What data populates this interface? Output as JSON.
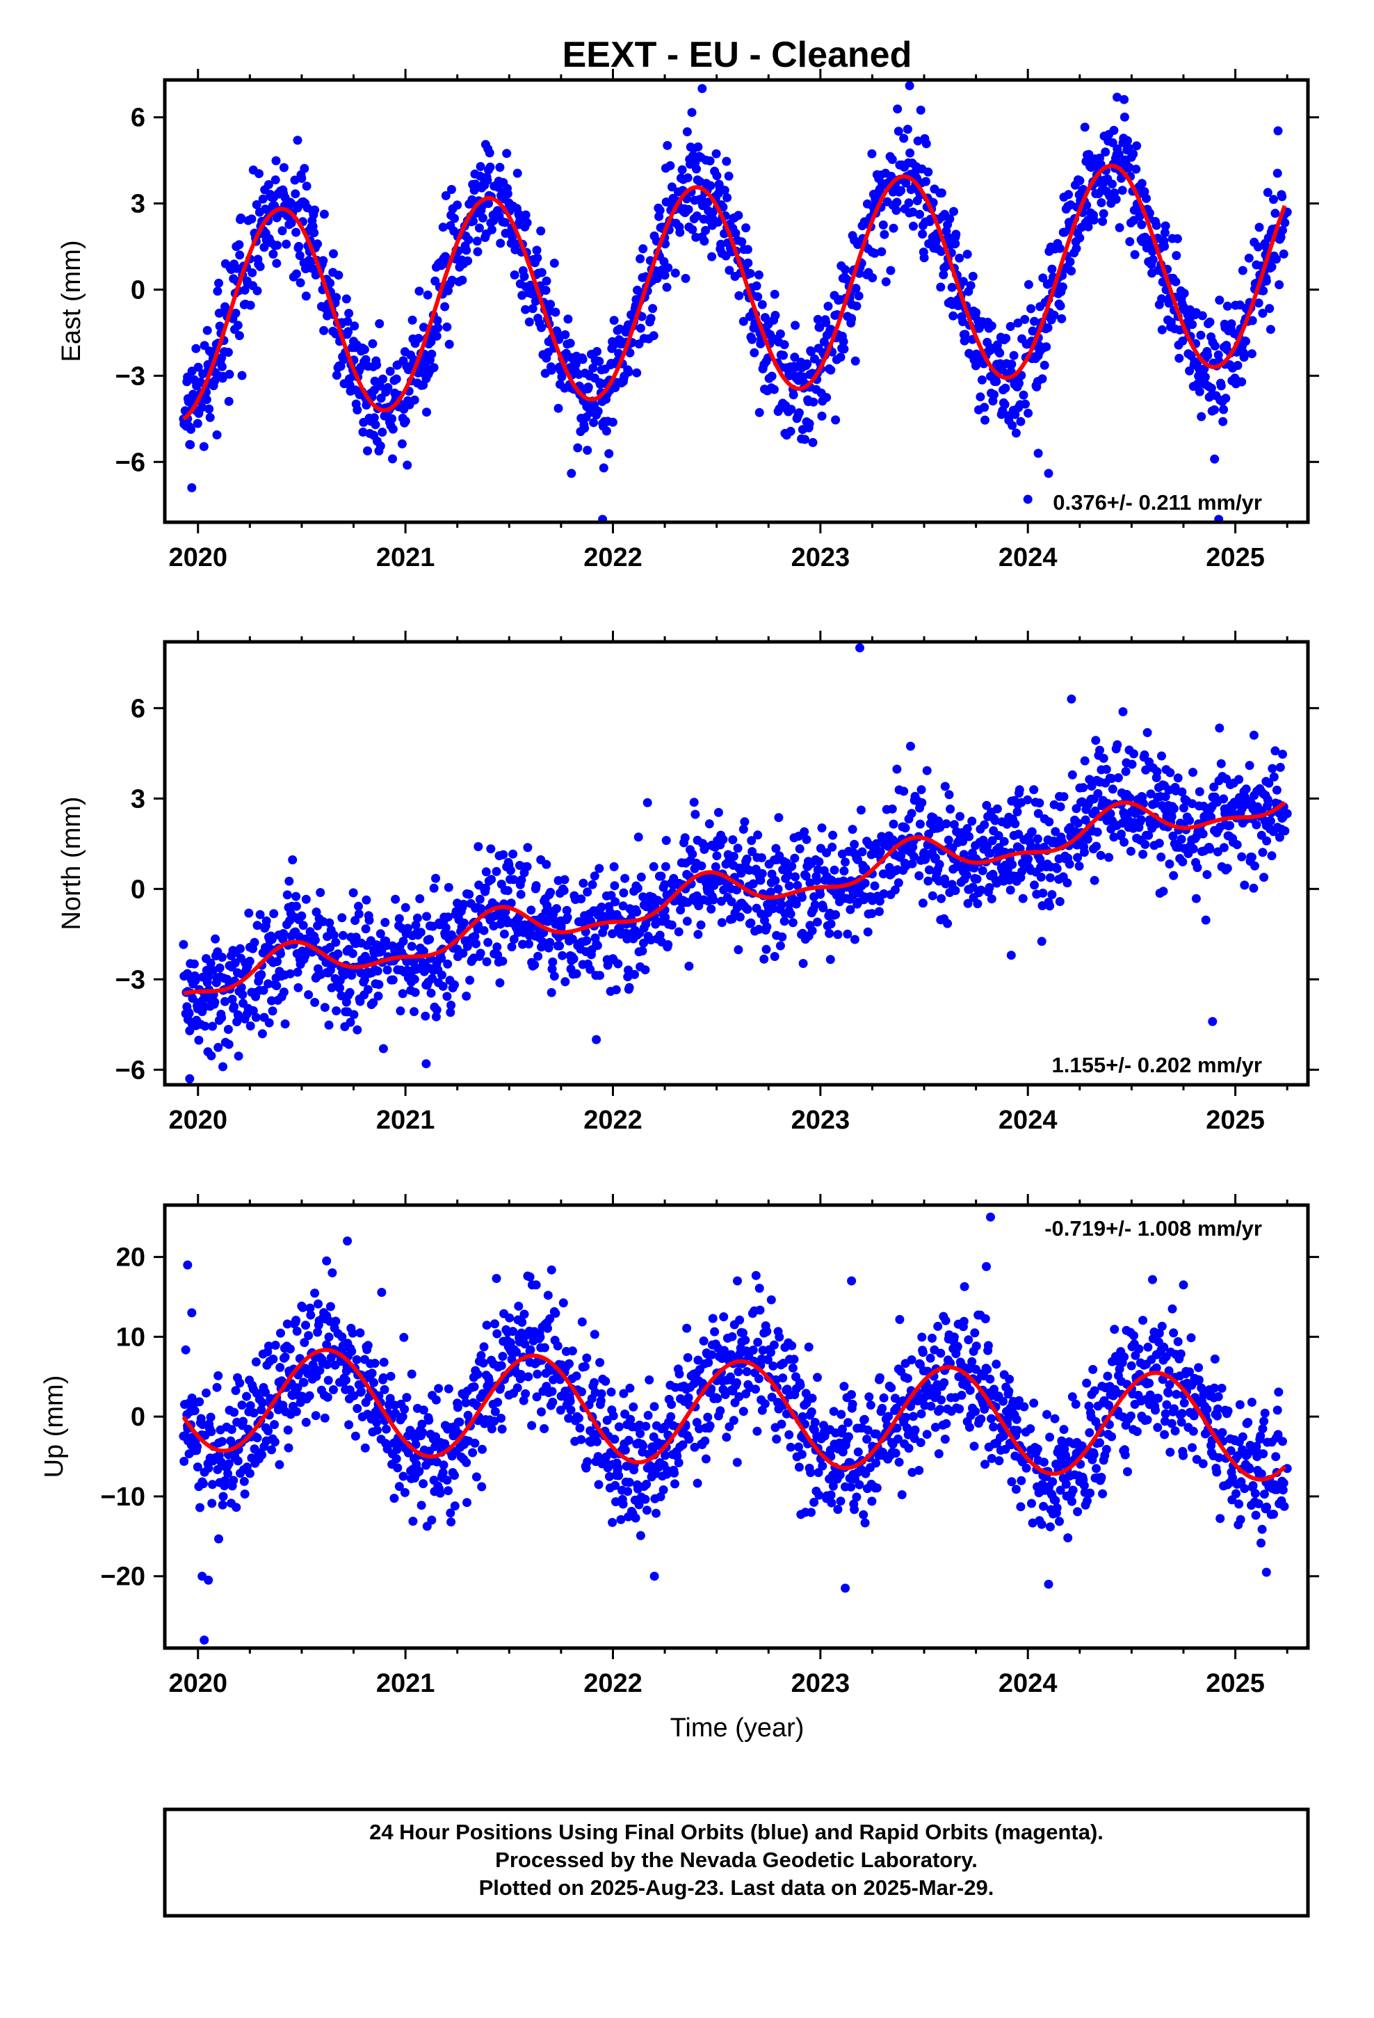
{
  "title": "EEXT  - EU - Cleaned",
  "xlabel": "Time (year)",
  "footer": [
    "24 Hour Positions Using Final Orbits (blue) and Rapid Orbits (magenta).",
    "Processed by the Nevada Geodetic Laboratory.",
    "Plotted on 2025-Aug-23. Last data on 2025-Mar-29."
  ],
  "colors": {
    "data": "#0000ff",
    "model": "#ff0000",
    "frame": "#000000"
  },
  "chart_data": [
    {
      "type": "scatter",
      "ylabel": "East (mm)",
      "rate_label": "0.376+/- 0.211 mm/yr",
      "xlim": [
        2019.84,
        2025.35
      ],
      "ylim": [
        -8.1,
        7.3
      ],
      "xticks": [
        2020,
        2021,
        2022,
        2023,
        2024,
        2025
      ],
      "yticks": [
        6,
        3,
        0,
        -3,
        -6
      ],
      "model": {
        "intercept": 0.0,
        "slope": 0.376,
        "epoch": 2022.5,
        "amplitude": 3.6,
        "phase_year": 0.4,
        "semiannual": 0.0
      },
      "noise_sd": 1.0,
      "series": [
        {
          "name": "daily positions",
          "points": [
            [
              2019.95,
              -4.5
            ],
            [
              2020.02,
              -4.1
            ],
            [
              2020.1,
              -3.0
            ],
            [
              2020.2,
              -1.6
            ],
            [
              2020.3,
              0.8
            ],
            [
              2020.38,
              2.5
            ],
            [
              2020.45,
              3.0
            ],
            [
              2020.55,
              2.4
            ],
            [
              2020.65,
              0.6
            ],
            [
              2020.75,
              -1.8
            ],
            [
              2020.85,
              -3.5
            ],
            [
              2020.93,
              -4.1
            ],
            [
              2021.0,
              -4.0
            ],
            [
              2021.1,
              -3.1
            ],
            [
              2021.2,
              -1.3
            ],
            [
              2021.3,
              1.0
            ],
            [
              2021.4,
              3.0
            ],
            [
              2021.48,
              3.4
            ],
            [
              2021.58,
              2.6
            ],
            [
              2021.68,
              0.3
            ],
            [
              2021.78,
              -1.9
            ],
            [
              2021.88,
              -3.4
            ],
            [
              2021.96,
              -3.6
            ],
            [
              2022.05,
              -3.2
            ],
            [
              2022.15,
              -1.7
            ],
            [
              2022.25,
              0.5
            ],
            [
              2022.35,
              2.7
            ],
            [
              2022.45,
              3.7
            ],
            [
              2022.55,
              3.2
            ],
            [
              2022.65,
              1.4
            ],
            [
              2022.75,
              -1.2
            ],
            [
              2022.85,
              -3.0
            ],
            [
              2022.95,
              -3.4
            ],
            [
              2023.05,
              -2.8
            ],
            [
              2023.15,
              -1.0
            ],
            [
              2023.25,
              1.3
            ],
            [
              2023.35,
              3.4
            ],
            [
              2023.45,
              4.0
            ],
            [
              2023.55,
              3.5
            ],
            [
              2023.65,
              1.6
            ],
            [
              2023.75,
              -0.8
            ],
            [
              2023.85,
              -2.6
            ],
            [
              2023.95,
              -3.0
            ],
            [
              2024.05,
              -2.3
            ],
            [
              2024.15,
              -0.5
            ],
            [
              2024.25,
              1.8
            ],
            [
              2024.35,
              3.8
            ],
            [
              2024.45,
              4.4
            ],
            [
              2024.55,
              3.7
            ],
            [
              2024.65,
              1.7
            ],
            [
              2024.75,
              -0.6
            ],
            [
              2024.85,
              -2.3
            ],
            [
              2024.95,
              -2.6
            ],
            [
              2025.05,
              -1.8
            ],
            [
              2025.15,
              0.3
            ],
            [
              2025.25,
              2.7
            ],
            [
              2020.48,
              5.2
            ],
            [
              2023.43,
              7.1
            ],
            [
              2022.43,
              7.0
            ],
            [
              2024.43,
              6.7
            ],
            [
              2024.1,
              -6.4
            ],
            [
              2024.05,
              -5.7
            ],
            [
              2024.0,
              -7.3
            ],
            [
              2021.95,
              -8.0
            ],
            [
              2021.8,
              -6.4
            ],
            [
              2019.97,
              -6.9
            ],
            [
              2024.9,
              -5.9
            ],
            [
              2024.92,
              -8.0
            ]
          ]
        }
      ]
    },
    {
      "type": "scatter",
      "ylabel": "North (mm)",
      "rate_label": "1.155+/- 0.202 mm/yr",
      "xlim": [
        2019.84,
        2025.35
      ],
      "ylim": [
        -6.5,
        8.2
      ],
      "xticks": [
        2020,
        2021,
        2022,
        2023,
        2024,
        2025
      ],
      "yticks": [
        6,
        3,
        0,
        -3,
        -6
      ],
      "model": {
        "intercept": -0.2,
        "slope": 1.155,
        "epoch": 2022.5,
        "amplitude": 0.55,
        "phase_year": 0.45,
        "semiannual": 0.25
      },
      "noise_sd": 1.0,
      "series": [
        {
          "name": "daily positions",
          "points": [
            [
              2019.95,
              -3.4
            ],
            [
              2020.05,
              -3.6
            ],
            [
              2020.15,
              -3.2
            ],
            [
              2020.25,
              -2.4
            ],
            [
              2020.35,
              -2.0
            ],
            [
              2020.45,
              -1.8
            ],
            [
              2020.55,
              -2.1
            ],
            [
              2020.65,
              -2.5
            ],
            [
              2020.75,
              -2.6
            ],
            [
              2020.85,
              -2.4
            ],
            [
              2020.95,
              -2.1
            ],
            [
              2021.05,
              -2.3
            ],
            [
              2021.15,
              -2.5
            ],
            [
              2021.25,
              -2.0
            ],
            [
              2021.35,
              -1.2
            ],
            [
              2021.45,
              -0.8
            ],
            [
              2021.55,
              -0.9
            ],
            [
              2021.65,
              -1.3
            ],
            [
              2021.75,
              -1.3
            ],
            [
              2021.85,
              -1.1
            ],
            [
              2021.95,
              -0.9
            ],
            [
              2022.05,
              -1.1
            ],
            [
              2022.15,
              -1.3
            ],
            [
              2022.25,
              -0.7
            ],
            [
              2022.35,
              0.0
            ],
            [
              2022.45,
              0.4
            ],
            [
              2022.55,
              0.3
            ],
            [
              2022.65,
              -0.1
            ],
            [
              2022.75,
              -0.2
            ],
            [
              2022.85,
              0.1
            ],
            [
              2022.95,
              0.2
            ],
            [
              2023.05,
              0.0
            ],
            [
              2023.15,
              0.0
            ],
            [
              2023.25,
              0.5
            ],
            [
              2023.35,
              1.2
            ],
            [
              2023.45,
              1.6
            ],
            [
              2023.55,
              1.4
            ],
            [
              2023.65,
              1.0
            ],
            [
              2023.75,
              1.0
            ],
            [
              2023.85,
              1.3
            ],
            [
              2023.95,
              1.4
            ],
            [
              2024.05,
              1.1
            ],
            [
              2024.15,
              1.0
            ],
            [
              2024.25,
              1.6
            ],
            [
              2024.35,
              2.4
            ],
            [
              2024.45,
              2.8
            ],
            [
              2024.55,
              2.6
            ],
            [
              2024.65,
              2.2
            ],
            [
              2024.75,
              2.1
            ],
            [
              2024.85,
              2.4
            ],
            [
              2024.95,
              2.5
            ],
            [
              2025.05,
              2.3
            ],
            [
              2025.15,
              2.1
            ],
            [
              2025.25,
              2.5
            ],
            [
              2023.19,
              8.0
            ],
            [
              2024.21,
              6.3
            ],
            [
              2025.09,
              5.1
            ],
            [
              2024.89,
              -4.4
            ],
            [
              2021.92,
              -5.0
            ],
            [
              2021.1,
              -5.8
            ],
            [
              2019.96,
              -6.3
            ],
            [
              2020.12,
              -5.9
            ],
            [
              2023.92,
              -2.2
            ]
          ]
        }
      ]
    },
    {
      "type": "scatter",
      "ylabel": "Up (mm)",
      "rate_label": "-0.719+/- 1.008 mm/yr",
      "xlim": [
        2019.84,
        2025.35
      ],
      "ylim": [
        -29.0,
        26.5
      ],
      "xticks": [
        2020,
        2021,
        2022,
        2023,
        2024,
        2025
      ],
      "yticks": [
        20,
        10,
        0,
        -10,
        -20
      ],
      "model": {
        "intercept": 0.5,
        "slope": -0.719,
        "epoch": 2022.5,
        "amplitude": 6.5,
        "phase_year": 0.62,
        "semiannual": 0.0
      },
      "noise_sd": 4.2,
      "series": [
        {
          "name": "daily positions",
          "points": [
            [
              2019.95,
              -1.5
            ],
            [
              2020.1,
              -3.3
            ],
            [
              2020.25,
              -2.0
            ],
            [
              2020.4,
              3.5
            ],
            [
              2020.55,
              8.0
            ],
            [
              2020.62,
              9.0
            ],
            [
              2020.75,
              6.0
            ],
            [
              2020.9,
              -0.5
            ],
            [
              2021.05,
              -3.5
            ],
            [
              2021.2,
              -4.0
            ],
            [
              2021.35,
              -0.5
            ],
            [
              2021.5,
              5.5
            ],
            [
              2021.6,
              8.2
            ],
            [
              2021.75,
              5.5
            ],
            [
              2021.9,
              0.0
            ],
            [
              2022.05,
              -4.0
            ],
            [
              2022.2,
              -4.8
            ],
            [
              2022.35,
              -1.0
            ],
            [
              2022.5,
              4.5
            ],
            [
              2022.6,
              7.5
            ],
            [
              2022.75,
              5.0
            ],
            [
              2022.9,
              -0.5
            ],
            [
              2023.05,
              -5.0
            ],
            [
              2023.2,
              -5.5
            ],
            [
              2023.35,
              -1.5
            ],
            [
              2023.5,
              4.0
            ],
            [
              2023.62,
              6.8
            ],
            [
              2023.75,
              4.5
            ],
            [
              2023.9,
              -1.0
            ],
            [
              2024.05,
              -5.5
            ],
            [
              2024.2,
              -6.0
            ],
            [
              2024.35,
              -2.0
            ],
            [
              2024.5,
              3.5
            ],
            [
              2024.62,
              6.1
            ],
            [
              2024.75,
              4.0
            ],
            [
              2024.9,
              -2.0
            ],
            [
              2025.05,
              -6.0
            ],
            [
              2025.2,
              -7.0
            ],
            [
              2025.25,
              -6.5
            ],
            [
              2019.95,
              19.0
            ],
            [
              2019.97,
              13.0
            ],
            [
              2020.02,
              -20.0
            ],
            [
              2020.05,
              -20.5
            ],
            [
              2020.03,
              -28.0
            ],
            [
              2020.72,
              22.0
            ],
            [
              2020.62,
              19.5
            ],
            [
              2023.82,
              25.0
            ],
            [
              2023.8,
              18.8
            ],
            [
              2021.6,
              17.5
            ],
            [
              2022.6,
              17.0
            ],
            [
              2023.15,
              17.0
            ],
            [
              2023.12,
              -21.5
            ],
            [
              2024.1,
              -21.0
            ],
            [
              2022.2,
              -20.0
            ],
            [
              2025.15,
              -19.5
            ],
            [
              2024.75,
              16.5
            ]
          ]
        }
      ]
    }
  ]
}
